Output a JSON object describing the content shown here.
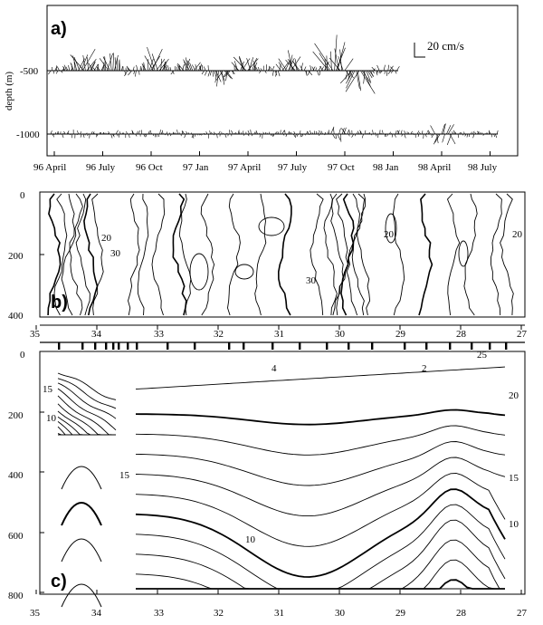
{
  "figure": {
    "panel_a": {
      "label": "a)",
      "ylabel": "depth (m)",
      "y_ticks": [
        "-500",
        "-1000"
      ],
      "x_ticks": [
        "96 April",
        "96 July",
        "96 Oct",
        "97 Jan",
        "97 April",
        "97 July",
        "97 Oct",
        "98 Jan",
        "98 April",
        "98 July"
      ],
      "scale_label": "20 cm/s"
    },
    "panel_b": {
      "label": "b)",
      "y_ticks": [
        "0",
        "200",
        "400"
      ],
      "x_ticks": [
        "35",
        "34",
        "33",
        "32",
        "31",
        "30",
        "29",
        "28",
        "27"
      ],
      "contour_labels": [
        "20",
        "30",
        "20",
        "30",
        "20"
      ]
    },
    "panel_c": {
      "label": "c)",
      "y_ticks": [
        "0",
        "200",
        "400",
        "600",
        "800"
      ],
      "x_ticks": [
        "35",
        "34",
        "33",
        "32",
        "31",
        "30",
        "29",
        "28",
        "27"
      ],
      "contour_labels": [
        "15",
        "10",
        "15",
        "10",
        "20",
        "15",
        "10",
        "25",
        "4",
        "2"
      ]
    }
  }
}
